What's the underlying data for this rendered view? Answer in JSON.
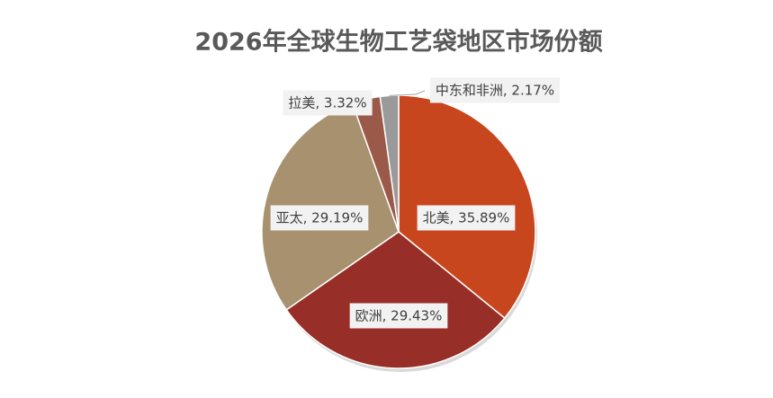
{
  "chart_data": {
    "type": "pie",
    "title": "2026年全球生物工艺袋地区市场份额",
    "values": [
      35.89,
      29.43,
      29.19,
      3.32,
      2.17
    ],
    "value_labels": [
      "北美, 35.89%",
      "欧洲, 29.43%",
      "亚太, 29.19%",
      "拉美, 3.32%",
      "中东和非洲, 2.17%"
    ],
    "colors": [
      "#c8461d",
      "#972f28",
      "#a7916f",
      "#9b5a49",
      "#9a9a9a"
    ]
  }
}
